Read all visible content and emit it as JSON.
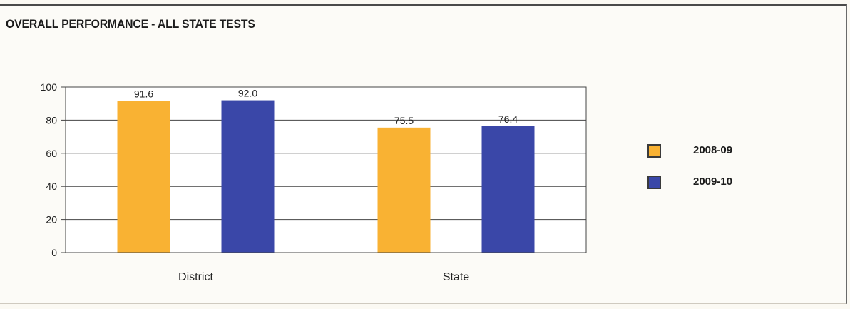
{
  "header": {
    "title": "OVERALL PERFORMANCE - ALL STATE TESTS"
  },
  "chart_data": {
    "type": "bar",
    "categories": [
      "District",
      "State"
    ],
    "series": [
      {
        "name": "2008-09",
        "values": [
          91.6,
          75.5
        ],
        "value_labels": [
          "91.6",
          "75.5"
        ],
        "color": "#f9b233"
      },
      {
        "name": "2009-10",
        "values": [
          92.0,
          76.4
        ],
        "value_labels": [
          "92.0",
          "76.4"
        ],
        "color": "#3a47a8"
      }
    ],
    "ylim": [
      0,
      100
    ],
    "yticks": [
      "0",
      "20",
      "40",
      "60",
      "80",
      "100"
    ],
    "grid": true,
    "legend": "right",
    "title": "",
    "xlabel": "",
    "ylabel": ""
  },
  "legend": {
    "items": [
      {
        "label": "2008-09",
        "color": "#f9b233"
      },
      {
        "label": "2009-10",
        "color": "#3a47a8"
      }
    ]
  }
}
